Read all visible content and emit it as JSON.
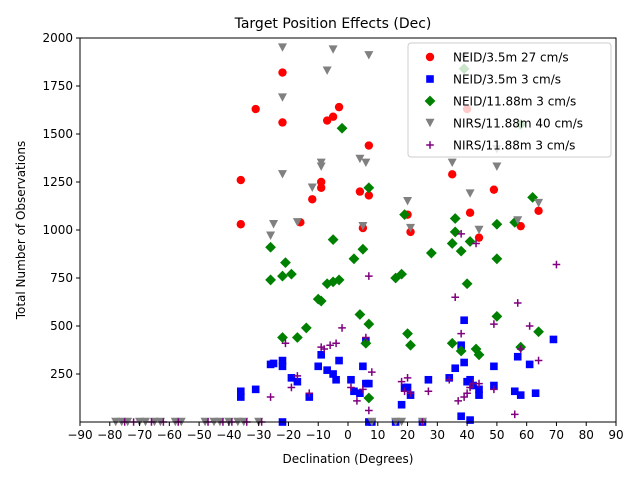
{
  "chart_data": {
    "type": "scatter",
    "title": "Target Position Effects (Dec)",
    "xlabel": "Declination (Degrees)",
    "ylabel": "Total Number of Observations",
    "xlim": [
      -90,
      90
    ],
    "ylim": [
      0,
      2000
    ],
    "xticks": [
      -90,
      -80,
      -70,
      -60,
      -50,
      -40,
      -30,
      -20,
      -10,
      0,
      10,
      20,
      30,
      40,
      50,
      60,
      70,
      80,
      90
    ],
    "yticks": [
      250,
      500,
      750,
      1000,
      1250,
      1500,
      1750,
      2000
    ],
    "grid": false,
    "legend_position": "top-right",
    "series": [
      {
        "name": "NEID/3.5m 27 cm/s",
        "marker": "circle",
        "color": "#ff0000",
        "points": [
          [
            -36,
            1260
          ],
          [
            -36,
            1030
          ],
          [
            -31,
            1630
          ],
          [
            -22,
            1820
          ],
          [
            -22,
            1560
          ],
          [
            -16,
            1040
          ],
          [
            -12,
            1160
          ],
          [
            -9,
            1250
          ],
          [
            -9,
            1220
          ],
          [
            -7,
            1570
          ],
          [
            -5,
            1590
          ],
          [
            -3,
            1640
          ],
          [
            4,
            1200
          ],
          [
            5,
            1010
          ],
          [
            7,
            1440
          ],
          [
            7,
            1180
          ],
          [
            20,
            1080
          ],
          [
            21,
            990
          ],
          [
            35,
            1290
          ],
          [
            40,
            1630
          ],
          [
            41,
            1090
          ],
          [
            44,
            960
          ],
          [
            49,
            1210
          ],
          [
            58,
            1020
          ],
          [
            64,
            1100
          ]
        ]
      },
      {
        "name": "NEID/3.5m 3 cm/s",
        "marker": "square",
        "color": "#0000ff",
        "points": [
          [
            -36,
            160
          ],
          [
            -36,
            130
          ],
          [
            -31,
            170
          ],
          [
            -26,
            300
          ],
          [
            -25,
            305
          ],
          [
            -22,
            320
          ],
          [
            -22,
            290
          ],
          [
            -22,
            0
          ],
          [
            -19,
            230
          ],
          [
            -17,
            210
          ],
          [
            -13,
            130
          ],
          [
            -10,
            290
          ],
          [
            -9,
            350
          ],
          [
            -7,
            270
          ],
          [
            -5,
            250
          ],
          [
            -4,
            220
          ],
          [
            -3,
            320
          ],
          [
            1,
            220
          ],
          [
            2,
            160
          ],
          [
            4,
            150
          ],
          [
            5,
            290
          ],
          [
            6,
            420
          ],
          [
            6,
            200
          ],
          [
            7,
            0
          ],
          [
            7,
            200
          ],
          [
            8,
            0
          ],
          [
            16,
            0
          ],
          [
            18,
            90
          ],
          [
            19,
            180
          ],
          [
            20,
            180
          ],
          [
            21,
            140
          ],
          [
            25,
            0
          ],
          [
            27,
            220
          ],
          [
            34,
            230
          ],
          [
            36,
            280
          ],
          [
            38,
            30
          ],
          [
            38,
            400
          ],
          [
            39,
            530
          ],
          [
            39,
            310
          ],
          [
            40,
            210
          ],
          [
            41,
            10
          ],
          [
            41,
            220
          ],
          [
            42,
            190
          ],
          [
            44,
            140
          ],
          [
            44,
            170
          ],
          [
            49,
            290
          ],
          [
            49,
            190
          ],
          [
            56,
            160
          ],
          [
            57,
            340
          ],
          [
            58,
            140
          ],
          [
            61,
            300
          ],
          [
            63,
            150
          ],
          [
            69,
            430
          ]
        ]
      },
      {
        "name": "NEID/11.88m 3 cm/s",
        "marker": "diamond",
        "color": "#008000",
        "points": [
          [
            -26,
            910
          ],
          [
            -26,
            740
          ],
          [
            -22,
            440
          ],
          [
            -22,
            760
          ],
          [
            -21,
            830
          ],
          [
            -19,
            770
          ],
          [
            -17,
            440
          ],
          [
            -14,
            490
          ],
          [
            -10,
            640
          ],
          [
            -9,
            630
          ],
          [
            -7,
            720
          ],
          [
            -5,
            730
          ],
          [
            -5,
            950
          ],
          [
            -3,
            740
          ],
          [
            -2,
            1530
          ],
          [
            2,
            850
          ],
          [
            4,
            560
          ],
          [
            5,
            900
          ],
          [
            6,
            410
          ],
          [
            7,
            510
          ],
          [
            7,
            125
          ],
          [
            7,
            1220
          ],
          [
            16,
            750
          ],
          [
            18,
            770
          ],
          [
            19,
            1080
          ],
          [
            20,
            460
          ],
          [
            21,
            400
          ],
          [
            28,
            880
          ],
          [
            35,
            930
          ],
          [
            35,
            410
          ],
          [
            36,
            1060
          ],
          [
            36,
            990
          ],
          [
            38,
            890
          ],
          [
            38,
            370
          ],
          [
            39,
            1840
          ],
          [
            40,
            720
          ],
          [
            41,
            940
          ],
          [
            43,
            380
          ],
          [
            44,
            350
          ],
          [
            50,
            850
          ],
          [
            50,
            1030
          ],
          [
            50,
            550
          ],
          [
            56,
            1040
          ],
          [
            58,
            390
          ],
          [
            58,
            1550
          ],
          [
            62,
            1170
          ],
          [
            64,
            470
          ]
        ]
      },
      {
        "name": "NIRS/11.88m 40 cm/s",
        "marker": "triangle-down",
        "color": "#808080",
        "points": [
          [
            -78,
            0
          ],
          [
            -76,
            0
          ],
          [
            -74,
            0
          ],
          [
            -70,
            0
          ],
          [
            -68,
            0
          ],
          [
            -65,
            0
          ],
          [
            -63,
            0
          ],
          [
            -58,
            0
          ],
          [
            -56,
            0
          ],
          [
            -48,
            0
          ],
          [
            -45,
            0
          ],
          [
            -43,
            0
          ],
          [
            -40,
            0
          ],
          [
            -37,
            0
          ],
          [
            -35,
            0
          ],
          [
            -30,
            0
          ],
          [
            -26,
            970
          ],
          [
            -25,
            1030
          ],
          [
            -22,
            1950
          ],
          [
            -22,
            1690
          ],
          [
            -22,
            1290
          ],
          [
            -17,
            1040
          ],
          [
            -12,
            1220
          ],
          [
            -9,
            1350
          ],
          [
            -9,
            1330
          ],
          [
            -7,
            1830
          ],
          [
            -5,
            1940
          ],
          [
            4,
            1370
          ],
          [
            5,
            1020
          ],
          [
            6,
            1350
          ],
          [
            7,
            1910
          ],
          [
            8,
            0
          ],
          [
            16,
            0
          ],
          [
            18,
            0
          ],
          [
            20,
            1150
          ],
          [
            21,
            1010
          ],
          [
            25,
            0
          ],
          [
            35,
            1350
          ],
          [
            39,
            1900
          ],
          [
            41,
            1190
          ],
          [
            44,
            1000
          ],
          [
            50,
            1330
          ],
          [
            50,
            1420
          ],
          [
            57,
            1050
          ],
          [
            64,
            1140
          ]
        ]
      },
      {
        "name": "NIRS/11.88m 3 cm/s",
        "marker": "plus",
        "color": "#800080",
        "points": [
          [
            -75,
            0
          ],
          [
            -72,
            0
          ],
          [
            -66,
            0
          ],
          [
            -62,
            0
          ],
          [
            -57,
            0
          ],
          [
            -47,
            0
          ],
          [
            -42,
            0
          ],
          [
            -39,
            0
          ],
          [
            -34,
            0
          ],
          [
            -29,
            0
          ],
          [
            -26,
            130
          ],
          [
            -21,
            410
          ],
          [
            -19,
            180
          ],
          [
            -17,
            240
          ],
          [
            -13,
            150
          ],
          [
            -9,
            390
          ],
          [
            -8,
            380
          ],
          [
            -6,
            400
          ],
          [
            -4,
            410
          ],
          [
            -2,
            490
          ],
          [
            1,
            180
          ],
          [
            3,
            110
          ],
          [
            5,
            170
          ],
          [
            6,
            440
          ],
          [
            7,
            760
          ],
          [
            7,
            60
          ],
          [
            8,
            260
          ],
          [
            18,
            210
          ],
          [
            19,
            160
          ],
          [
            20,
            230
          ],
          [
            21,
            150
          ],
          [
            25,
            0
          ],
          [
            27,
            160
          ],
          [
            34,
            220
          ],
          [
            36,
            650
          ],
          [
            37,
            110
          ],
          [
            38,
            460
          ],
          [
            38,
            980
          ],
          [
            39,
            130
          ],
          [
            40,
            150
          ],
          [
            41,
            180
          ],
          [
            42,
            200
          ],
          [
            43,
            930
          ],
          [
            44,
            200
          ],
          [
            49,
            170
          ],
          [
            49,
            510
          ],
          [
            56,
            40
          ],
          [
            57,
            620
          ],
          [
            58,
            380
          ],
          [
            61,
            500
          ],
          [
            64,
            320
          ],
          [
            70,
            820
          ]
        ]
      }
    ]
  }
}
